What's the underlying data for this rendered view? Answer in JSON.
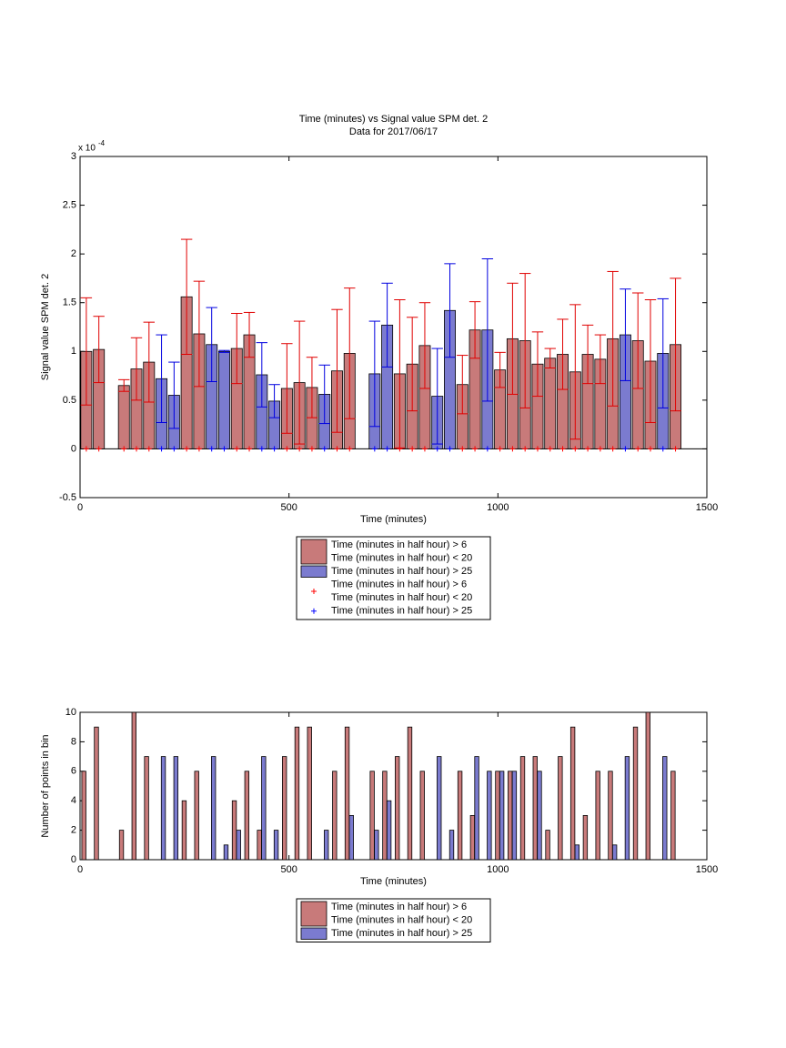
{
  "chart_data": [
    {
      "type": "bar",
      "title": "Time (minutes) vs Signal value SPM det. 2",
      "subtitle": "Data for 2017/06/17",
      "xlabel": "Time (minutes)",
      "ylabel": "Signal value SPM det. 2",
      "y_multiplier": {
        "base": "x 10",
        "exponent": "-4"
      },
      "xlim": [
        0,
        1500
      ],
      "xticks": [
        0,
        500,
        1000,
        1500
      ],
      "ylim": [
        -0.5,
        3
      ],
      "yticks": [
        -0.5,
        0,
        0.5,
        1,
        1.5,
        2,
        2.5,
        3
      ],
      "barmode": "overlay",
      "x": [
        15,
        45,
        75,
        105,
        135,
        165,
        195,
        225,
        255,
        285,
        315,
        345,
        375,
        405,
        435,
        465,
        495,
        525,
        555,
        585,
        615,
        645,
        675,
        705,
        735,
        765,
        795,
        825,
        855,
        885,
        915,
        945,
        975,
        1005,
        1035,
        1065,
        1095,
        1125,
        1155,
        1185,
        1215,
        1245,
        1275,
        1305,
        1335,
        1365,
        1395,
        1425
      ],
      "series": [
        {
          "name": [
            "Time (minutes in half hour) > 6",
            "Time (minutes in half hour) < 20"
          ],
          "color": "#c87a7a",
          "error_color": "#e00000",
          "values": [
            1.0,
            1.02,
            null,
            0.65,
            0.82,
            0.89,
            null,
            null,
            1.56,
            1.18,
            null,
            null,
            1.03,
            1.17,
            null,
            null,
            0.62,
            0.68,
            0.63,
            null,
            0.8,
            0.98,
            null,
            null,
            null,
            0.77,
            0.87,
            1.06,
            null,
            null,
            0.66,
            1.22,
            null,
            0.81,
            1.13,
            1.11,
            0.87,
            0.93,
            0.97,
            0.79,
            0.97,
            0.92,
            1.13,
            null,
            1.11,
            0.9,
            null,
            1.07
          ],
          "errors": [
            0.55,
            0.34,
            null,
            0.06,
            0.32,
            0.41,
            null,
            null,
            0.59,
            0.54,
            null,
            null,
            0.36,
            0.23,
            null,
            null,
            0.46,
            0.63,
            0.31,
            null,
            0.63,
            0.67,
            null,
            null,
            null,
            0.76,
            0.48,
            0.44,
            null,
            null,
            0.3,
            0.29,
            null,
            0.18,
            0.57,
            0.69,
            0.33,
            0.1,
            0.36,
            0.69,
            0.3,
            0.25,
            0.69,
            null,
            0.49,
            0.63,
            null,
            0.68
          ]
        },
        {
          "name": [
            "Time (minutes in half hour) > 25"
          ],
          "color": "#7b7bcf",
          "error_color": "#0000e0",
          "values": [
            null,
            null,
            null,
            null,
            null,
            null,
            0.72,
            0.55,
            null,
            null,
            1.07,
            1.0,
            null,
            null,
            0.76,
            0.49,
            null,
            null,
            null,
            0.56,
            null,
            null,
            null,
            0.77,
            1.27,
            null,
            null,
            null,
            0.54,
            1.42,
            null,
            null,
            1.22,
            null,
            null,
            null,
            null,
            null,
            null,
            null,
            null,
            null,
            null,
            1.17,
            null,
            null,
            0.98,
            null
          ],
          "errors": [
            null,
            null,
            null,
            null,
            null,
            null,
            0.45,
            0.34,
            null,
            null,
            0.38,
            0.01,
            null,
            null,
            0.33,
            0.17,
            null,
            null,
            null,
            0.3,
            null,
            null,
            null,
            0.54,
            0.43,
            null,
            null,
            null,
            0.49,
            0.48,
            null,
            null,
            0.73,
            null,
            null,
            null,
            null,
            null,
            null,
            null,
            null,
            null,
            null,
            0.47,
            null,
            null,
            0.56,
            null
          ]
        },
        {
          "name": [
            "Time (minutes in half hour) > 6",
            "Time (minutes in half hour) < 20"
          ],
          "color": "#ff0000",
          "marker": "+",
          "values": [
            0,
            0,
            null,
            0,
            0,
            0,
            null,
            null,
            0,
            0,
            null,
            null,
            0,
            0,
            null,
            null,
            0,
            0,
            0,
            null,
            0,
            0,
            null,
            null,
            null,
            0,
            0,
            0,
            null,
            null,
            0,
            0,
            null,
            0,
            0,
            0,
            0,
            0,
            0,
            0,
            0,
            0,
            0,
            null,
            0,
            0,
            null,
            0
          ]
        },
        {
          "name": [
            "Time (minutes in half hour) > 25"
          ],
          "color": "#0000ff",
          "marker": "+",
          "values": [
            null,
            null,
            null,
            null,
            null,
            null,
            0,
            0,
            null,
            null,
            0,
            0,
            null,
            null,
            0,
            0,
            null,
            null,
            null,
            0,
            null,
            null,
            null,
            0,
            0,
            null,
            null,
            null,
            0,
            0,
            null,
            null,
            0,
            null,
            null,
            null,
            null,
            null,
            null,
            null,
            null,
            null,
            null,
            0,
            null,
            null,
            0,
            null
          ]
        }
      ]
    },
    {
      "type": "bar",
      "xlabel": "Time (minutes)",
      "ylabel": "Number of points in bin",
      "xlim": [
        0,
        1500
      ],
      "xticks": [
        0,
        500,
        1000,
        1500
      ],
      "ylim": [
        0,
        10
      ],
      "yticks": [
        0,
        2,
        4,
        6,
        8,
        10
      ],
      "barmode": "group",
      "x": [
        15,
        45,
        75,
        105,
        135,
        165,
        195,
        225,
        255,
        285,
        315,
        345,
        375,
        405,
        435,
        465,
        495,
        525,
        555,
        585,
        615,
        645,
        675,
        705,
        735,
        765,
        795,
        825,
        855,
        885,
        915,
        945,
        975,
        1005,
        1035,
        1065,
        1095,
        1125,
        1155,
        1185,
        1215,
        1245,
        1275,
        1305,
        1335,
        1365,
        1395,
        1425
      ],
      "series": [
        {
          "name": [
            "Time (minutes in half hour) > 6",
            "Time (minutes in half hour) < 20"
          ],
          "color": "#c87a7a",
          "values": [
            6,
            9,
            null,
            2,
            10,
            7,
            null,
            null,
            4,
            6,
            null,
            null,
            4,
            6,
            2,
            null,
            7,
            9,
            9,
            null,
            6,
            9,
            null,
            6,
            6,
            7,
            9,
            6,
            null,
            null,
            6,
            3,
            null,
            6,
            6,
            7,
            7,
            2,
            7,
            9,
            3,
            6,
            6,
            null,
            9,
            10,
            null,
            6
          ]
        },
        {
          "name": [
            "Time (minutes in half hour) > 25"
          ],
          "color": "#7b7bcf",
          "values": [
            null,
            null,
            null,
            null,
            null,
            null,
            7,
            7,
            null,
            null,
            7,
            1,
            2,
            null,
            7,
            2,
            null,
            null,
            null,
            2,
            null,
            3,
            null,
            2,
            4,
            null,
            null,
            null,
            7,
            2,
            null,
            7,
            6,
            6,
            6,
            null,
            6,
            null,
            null,
            1,
            null,
            null,
            1,
            7,
            null,
            null,
            7,
            null
          ]
        }
      ]
    }
  ]
}
